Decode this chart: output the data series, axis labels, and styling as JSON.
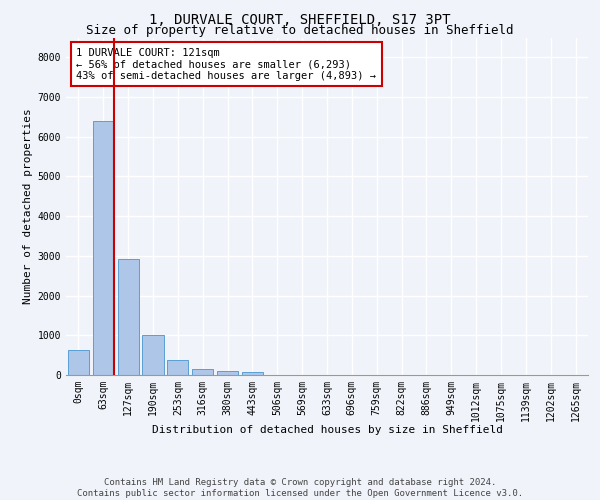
{
  "title_line1": "1, DURVALE COURT, SHEFFIELD, S17 3PT",
  "title_line2": "Size of property relative to detached houses in Sheffield",
  "xlabel": "Distribution of detached houses by size in Sheffield",
  "ylabel": "Number of detached properties",
  "bar_labels": [
    "0sqm",
    "63sqm",
    "127sqm",
    "190sqm",
    "253sqm",
    "316sqm",
    "380sqm",
    "443sqm",
    "506sqm",
    "569sqm",
    "633sqm",
    "696sqm",
    "759sqm",
    "822sqm",
    "886sqm",
    "949sqm",
    "1012sqm",
    "1075sqm",
    "1139sqm",
    "1202sqm",
    "1265sqm"
  ],
  "bar_values": [
    620,
    6390,
    2920,
    1000,
    370,
    160,
    90,
    80,
    0,
    0,
    0,
    0,
    0,
    0,
    0,
    0,
    0,
    0,
    0,
    0,
    0
  ],
  "bar_color": "#aec6e8",
  "bar_edge_color": "#5a9fd4",
  "vline_color": "#cc0000",
  "annotation_text": "1 DURVALE COURT: 121sqm\n← 56% of detached houses are smaller (6,293)\n43% of semi-detached houses are larger (4,893) →",
  "annotation_box_color": "#ffffff",
  "annotation_box_edge_color": "#cc0000",
  "ylim": [
    0,
    8500
  ],
  "yticks": [
    0,
    1000,
    2000,
    3000,
    4000,
    5000,
    6000,
    7000,
    8000
  ],
  "footnote": "Contains HM Land Registry data © Crown copyright and database right 2024.\nContains public sector information licensed under the Open Government Licence v3.0.",
  "bg_color": "#f0f4fa",
  "grid_color": "#ffffff",
  "title_fontsize": 10,
  "subtitle_fontsize": 9,
  "annotation_fontsize": 7.5,
  "footnote_fontsize": 6.5,
  "xlabel_fontsize": 8,
  "ylabel_fontsize": 8,
  "tick_fontsize": 7
}
